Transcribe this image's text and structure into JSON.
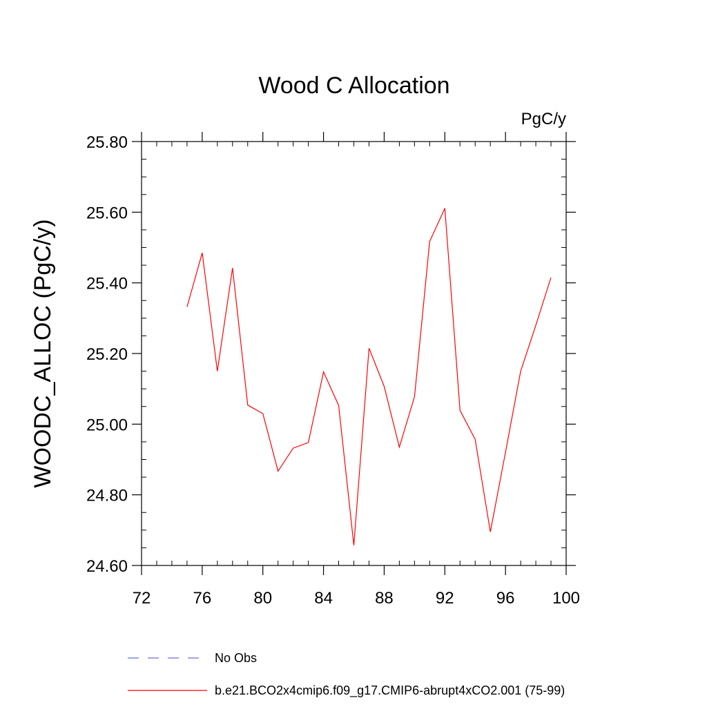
{
  "chart_data": {
    "type": "line",
    "title": "Wood C Allocation",
    "units_label": "PgC/y",
    "xlabel": "",
    "ylabel": "WOODC_ALLOC  (PgC/y)",
    "xlim": [
      72,
      100
    ],
    "ylim": [
      24.6,
      25.8
    ],
    "x_ticks": [
      72,
      76,
      80,
      84,
      88,
      92,
      96,
      100
    ],
    "x_tick_labels": [
      "72",
      "76",
      "80",
      "84",
      "88",
      "92",
      "96",
      "100"
    ],
    "y_ticks": [
      24.6,
      24.8,
      25.0,
      25.2,
      25.4,
      25.6,
      25.8
    ],
    "y_tick_labels": [
      "24.60",
      "24.80",
      "25.00",
      "25.20",
      "25.40",
      "25.60",
      "25.80"
    ],
    "x_minor_step": 1,
    "y_minor_step": 0.05,
    "series": [
      {
        "name": "b.e21.BCO2x4cmip6.f09_g17.CMIP6-abrupt4xCO2.001 (75-99)",
        "color": "#ff0000",
        "dash": "solid",
        "x": [
          75,
          76,
          77,
          78,
          79,
          80,
          81,
          82,
          83,
          84,
          85,
          86,
          87,
          88,
          89,
          90,
          91,
          92,
          93,
          94,
          95,
          96,
          97,
          98,
          99
        ],
        "y": [
          25.332,
          25.485,
          25.15,
          25.442,
          25.054,
          25.03,
          24.867,
          24.932,
          24.948,
          25.148,
          25.053,
          24.657,
          25.215,
          25.107,
          24.935,
          25.078,
          25.517,
          25.611,
          25.039,
          24.957,
          24.695,
          24.92,
          25.15,
          25.28,
          25.415
        ]
      }
    ],
    "legend": [
      {
        "label": "No Obs",
        "color": "#6a6ad8",
        "dash": "dashed"
      },
      {
        "label": "b.e21.BCO2x4cmip6.f09_g17.CMIP6-abrupt4xCO2.001 (75-99)",
        "color": "#ff0000",
        "dash": "solid"
      }
    ],
    "legend_position": "bottom"
  }
}
